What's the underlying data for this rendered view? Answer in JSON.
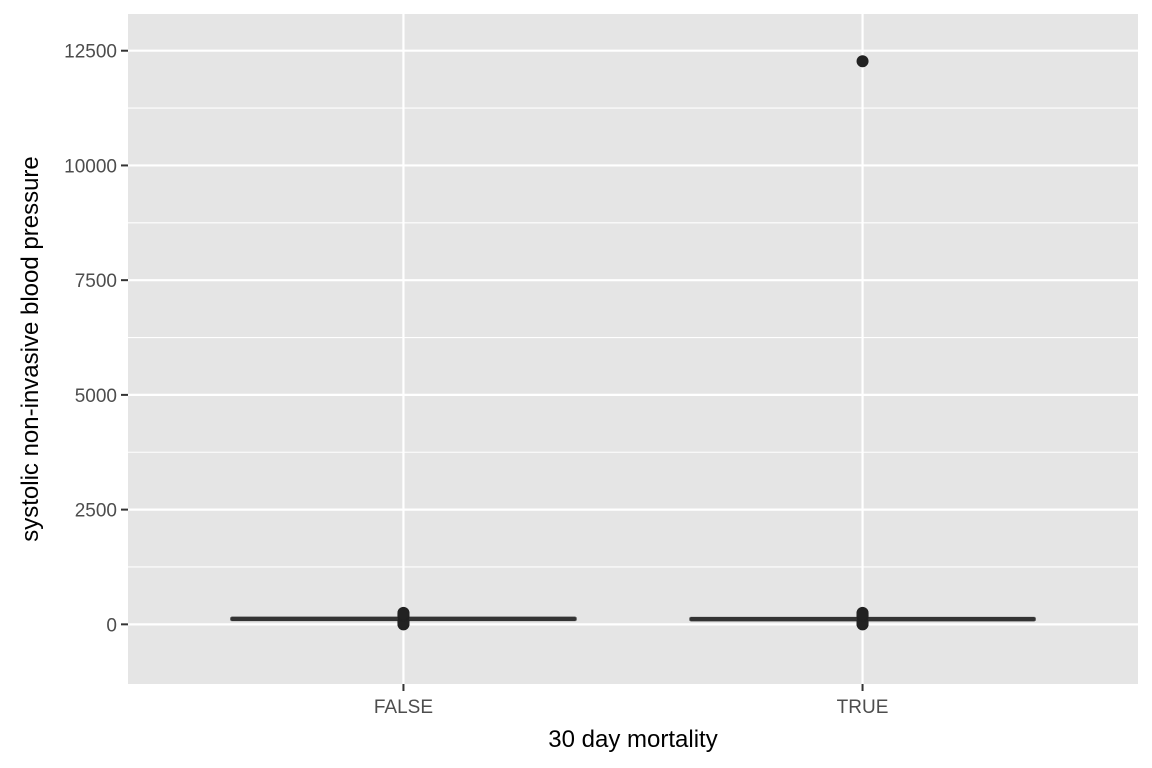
{
  "chart_data": {
    "type": "boxplot",
    "title": "",
    "xlabel": "30 day mortality",
    "ylabel": "systolic non-invasive blood pressure",
    "categories": [
      "FALSE",
      "TRUE"
    ],
    "ylim": [
      -1300,
      13300
    ],
    "yticks": [
      0,
      2500,
      5000,
      7500,
      10000,
      12500
    ],
    "ytick_labels": [
      "0",
      "2500",
      "5000",
      "7500",
      "10000",
      "12500"
    ],
    "grid": true,
    "legend": "none",
    "boxes": [
      {
        "category": "FALSE",
        "whisker_low": 65,
        "q1": 105,
        "median": 118,
        "q3": 132,
        "whisker_high": 172,
        "outliers": [
          0,
          10,
          20,
          30,
          40,
          50,
          60,
          180,
          190,
          200,
          210,
          220,
          230,
          240,
          250
        ]
      },
      {
        "category": "TRUE",
        "whisker_low": 60,
        "q1": 100,
        "median": 114,
        "q3": 128,
        "whisker_high": 168,
        "outliers": [
          0,
          10,
          20,
          30,
          40,
          50,
          170,
          180,
          190,
          200,
          210,
          220,
          230,
          240,
          250,
          12270
        ]
      }
    ],
    "colors": {
      "panel_background": "#e5e5e5",
      "grid": "#ffffff",
      "box": "#333333",
      "point": "#222222"
    }
  }
}
